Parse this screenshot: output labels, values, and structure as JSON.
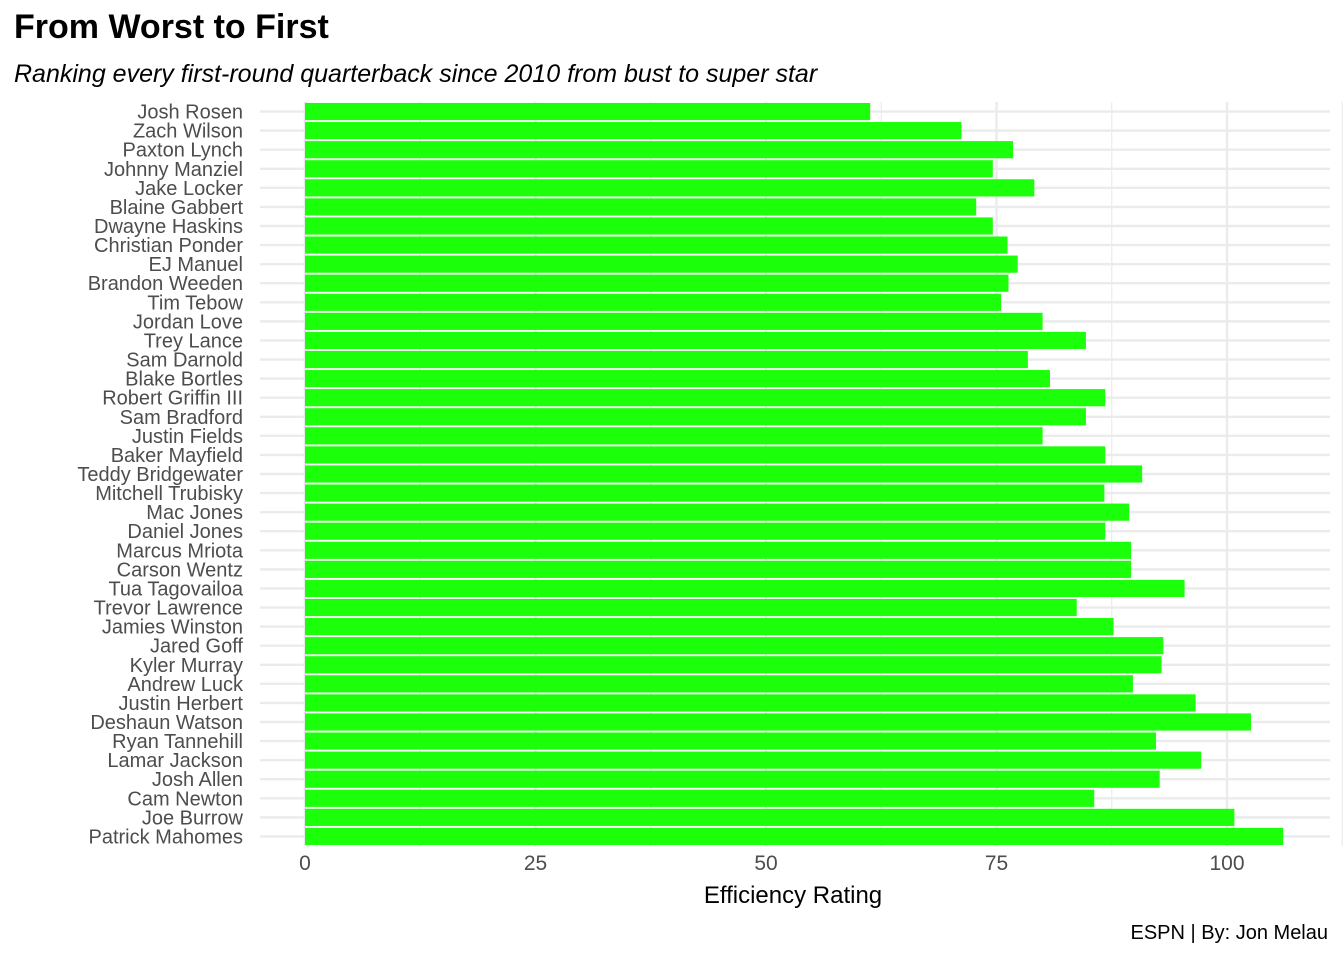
{
  "chart_data": {
    "type": "bar",
    "orientation": "horizontal",
    "title": "From Worst to First",
    "subtitle": "Ranking every first-round quarterback since 2010 from bust to super star",
    "caption": "ESPN | By: Jon Melau",
    "xlabel": "Efficiency Rating",
    "ylabel": "",
    "xlim": [
      0,
      110
    ],
    "xticks": [
      0,
      25,
      50,
      75,
      100
    ],
    "grid": true,
    "bar_color": "#1CFF0A",
    "grid_color": "#EBEBEB",
    "categories": [
      "Josh Rosen",
      "Zach Wilson",
      "Paxton Lynch",
      "Johnny Manziel",
      "Jake Locker",
      "Blaine Gabbert",
      "Dwayne Haskins",
      "Christian Ponder",
      "EJ Manuel",
      "Brandon Weeden",
      "Tim Tebow",
      "Jordan Love",
      "Trey Lance",
      "Sam Darnold",
      "Blake Bortles",
      "Robert Griffin III",
      "Sam Bradford",
      "Justin Fields",
      "Baker Mayfield",
      "Teddy Bridgewater",
      "Mitchell Trubisky",
      "Mac Jones",
      "Daniel Jones",
      "Marcus Mriota",
      "Carson Wentz",
      "Tua Tagovailoa",
      "Trevor Lawrence",
      "Jamies Winston",
      "Jared Goff",
      "Kyler Murray",
      "Andrew Luck",
      "Justin Herbert",
      "Deshaun Watson",
      "Ryan Tannehill",
      "Lamar Jackson",
      "Josh Allen",
      "Cam Newton",
      "Joe Burrow",
      "Patrick Mahomes"
    ],
    "values": [
      61.3,
      71.2,
      76.8,
      74.6,
      79.1,
      72.8,
      74.6,
      76.2,
      77.3,
      76.3,
      75.5,
      80.0,
      84.7,
      78.4,
      80.8,
      86.8,
      84.7,
      80.0,
      86.8,
      90.8,
      86.7,
      89.4,
      86.8,
      89.6,
      89.6,
      95.4,
      83.7,
      87.7,
      93.1,
      92.9,
      89.8,
      96.6,
      102.6,
      92.3,
      97.2,
      92.7,
      85.6,
      100.8,
      106.1
    ]
  }
}
